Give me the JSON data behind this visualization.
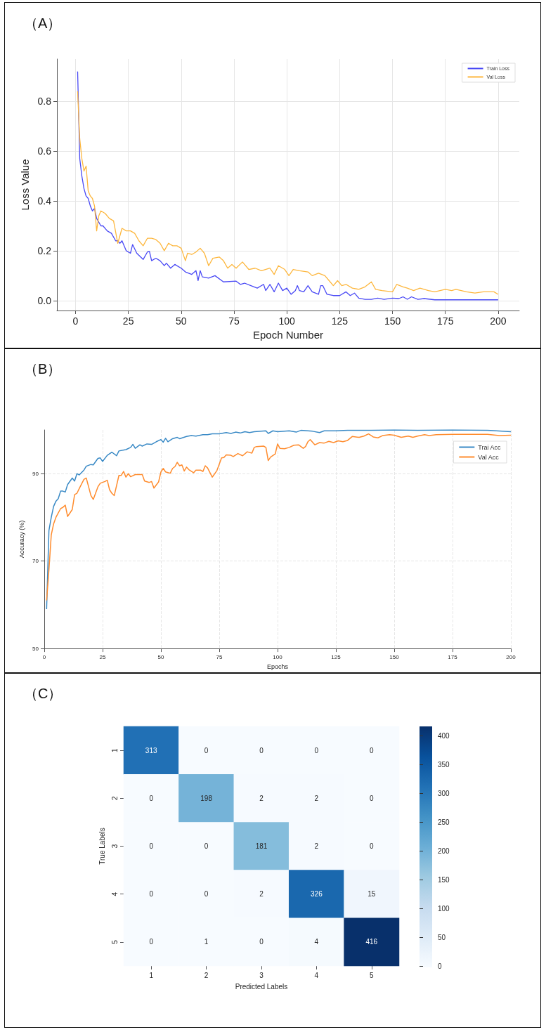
{
  "chart_data": [
    {
      "type": "line",
      "title": "（A）",
      "xlabel": "Epoch Number",
      "ylabel": "Loss Value",
      "xlim": [
        -8.8,
        210
      ],
      "xticks": [
        0,
        25,
        50,
        75,
        100,
        125,
        150,
        175,
        200
      ],
      "ylim": [
        -0.04,
        0.97
      ],
      "yticks": [
        {
          "value": 0,
          "label": "0.0"
        },
        0.2,
        0.4,
        0.6,
        0.8
      ],
      "grid": true,
      "legend": "top right",
      "series": [
        {
          "name": "Train Loss",
          "color": "#4a4af5",
          "x": [
            1,
            2,
            3,
            4,
            5,
            6,
            7,
            8,
            9,
            10,
            12,
            13,
            15,
            17,
            19,
            20,
            21,
            22,
            24,
            26,
            27,
            29,
            32,
            34,
            35,
            36,
            38,
            40,
            42,
            43,
            45,
            47,
            50,
            52,
            55,
            57,
            58,
            59,
            60,
            63,
            66,
            70,
            76,
            78,
            80,
            83,
            86,
            89,
            90,
            92,
            94,
            96,
            98,
            100,
            102,
            104,
            105,
            106,
            108,
            110,
            112,
            115,
            116,
            117,
            119,
            122,
            125,
            128,
            130,
            132,
            134,
            137,
            140,
            143,
            146,
            150,
            153,
            155,
            157,
            159,
            162,
            165,
            170,
            180,
            190,
            200
          ],
          "values": [
            0.92,
            0.57,
            0.5,
            0.45,
            0.42,
            0.41,
            0.38,
            0.36,
            0.37,
            0.33,
            0.3,
            0.3,
            0.28,
            0.27,
            0.24,
            0.24,
            0.23,
            0.24,
            0.2,
            0.19,
            0.225,
            0.19,
            0.165,
            0.195,
            0.197,
            0.16,
            0.17,
            0.16,
            0.14,
            0.15,
            0.13,
            0.145,
            0.13,
            0.115,
            0.105,
            0.12,
            0.08,
            0.12,
            0.095,
            0.09,
            0.1,
            0.075,
            0.078,
            0.065,
            0.07,
            0.06,
            0.05,
            0.065,
            0.04,
            0.065,
            0.035,
            0.07,
            0.04,
            0.05,
            0.025,
            0.04,
            0.06,
            0.04,
            0.035,
            0.06,
            0.035,
            0.025,
            0.06,
            0.06,
            0.025,
            0.02,
            0.02,
            0.035,
            0.02,
            0.03,
            0.01,
            0.005,
            0.005,
            0.01,
            0.005,
            0.01,
            0.008,
            0.015,
            0.005,
            0.015,
            0.005,
            0.008,
            0.003,
            0.003,
            0.003,
            0.003
          ]
        },
        {
          "name": "Val Loss",
          "color": "#fdb73e",
          "x": [
            1,
            2,
            3,
            4,
            5,
            6,
            7,
            8,
            9,
            10,
            11,
            12,
            14,
            16,
            18,
            20,
            22,
            24,
            26,
            28,
            30,
            32,
            34,
            36,
            38,
            40,
            42,
            44,
            46,
            48,
            50,
            52,
            53,
            55,
            57,
            59,
            61,
            63,
            65,
            68,
            70,
            72,
            74,
            76,
            79,
            82,
            85,
            88,
            92,
            94,
            96,
            99,
            101,
            103,
            106,
            110,
            112,
            115,
            118,
            120,
            122,
            124,
            126,
            128,
            131,
            134,
            137,
            140,
            142,
            145,
            150,
            152,
            155,
            157,
            160,
            163,
            167,
            170,
            175,
            178,
            180,
            185,
            189,
            193,
            198,
            200
          ],
          "values": [
            0.84,
            0.65,
            0.57,
            0.52,
            0.54,
            0.44,
            0.42,
            0.41,
            0.38,
            0.28,
            0.34,
            0.36,
            0.35,
            0.33,
            0.32,
            0.23,
            0.29,
            0.28,
            0.28,
            0.27,
            0.24,
            0.22,
            0.25,
            0.25,
            0.245,
            0.23,
            0.2,
            0.23,
            0.22,
            0.22,
            0.21,
            0.16,
            0.19,
            0.185,
            0.195,
            0.21,
            0.19,
            0.14,
            0.17,
            0.175,
            0.16,
            0.13,
            0.145,
            0.13,
            0.155,
            0.125,
            0.13,
            0.12,
            0.13,
            0.105,
            0.14,
            0.125,
            0.1,
            0.125,
            0.12,
            0.115,
            0.1,
            0.11,
            0.1,
            0.08,
            0.06,
            0.08,
            0.06,
            0.065,
            0.05,
            0.045,
            0.055,
            0.075,
            0.045,
            0.04,
            0.035,
            0.065,
            0.055,
            0.05,
            0.04,
            0.05,
            0.04,
            0.035,
            0.045,
            0.04,
            0.045,
            0.035,
            0.03,
            0.035,
            0.035,
            0.025
          ]
        }
      ]
    },
    {
      "type": "line",
      "title": "（B）",
      "xlabel": "Epochs",
      "ylabel": "Accuracy (%)",
      "xlim": [
        0,
        200
      ],
      "xticks": [
        0,
        25,
        50,
        75,
        100,
        125,
        150,
        175,
        200
      ],
      "ylim": [
        50,
        100
      ],
      "yticks": [
        50,
        70,
        90
      ],
      "grid": true,
      "legend": "top right",
      "series": [
        {
          "name": "Trai Acc",
          "color": "#3a8ac6",
          "x": [
            1,
            2,
            3,
            4,
            5,
            6,
            7,
            8,
            9,
            10,
            12,
            13,
            14,
            15,
            17,
            18,
            20,
            21,
            23,
            24,
            25,
            27,
            29,
            31,
            32,
            35,
            37,
            38,
            39,
            41,
            42,
            44,
            46,
            48,
            50,
            51,
            52,
            53,
            55,
            57,
            58,
            61,
            63,
            65,
            68,
            70,
            72,
            75,
            78,
            80,
            82,
            84,
            86,
            88,
            90,
            95,
            96,
            98,
            100,
            105,
            108,
            110,
            115,
            118,
            120,
            125,
            130,
            140,
            150,
            160,
            175,
            190,
            200
          ],
          "values": [
            59,
            77,
            80,
            82.5,
            83.7,
            84.3,
            86,
            86,
            85.8,
            87.5,
            89,
            88.3,
            90,
            89.7,
            90.8,
            91.7,
            92.1,
            92,
            93.5,
            93.6,
            92.8,
            94.2,
            94.9,
            94.1,
            95.2,
            95.5,
            96,
            96.7,
            95.8,
            96.6,
            96.3,
            96.8,
            96.7,
            97.3,
            97.8,
            97.2,
            98.1,
            97.3,
            98,
            98.3,
            98,
            98.5,
            98.7,
            98.6,
            98.9,
            98.9,
            99.1,
            99.1,
            99.4,
            99.2,
            99.5,
            99.3,
            99.6,
            99.4,
            99.6,
            99.8,
            99.2,
            99.8,
            99.6,
            99.8,
            99.5,
            99.9,
            99.7,
            99.4,
            99.8,
            99.8,
            99.9,
            99.9,
            100,
            99.9,
            100,
            99.9,
            99.6
          ]
        },
        {
          "name": "Val Acc",
          "color": "#ff8c2e",
          "x": [
            1,
            2,
            3,
            4,
            5,
            6,
            7,
            8,
            9,
            10,
            11,
            12,
            13,
            14,
            15,
            17,
            18,
            19,
            20,
            21,
            23,
            24,
            26,
            27,
            28,
            29,
            30,
            32,
            33,
            34,
            35,
            36,
            37,
            39,
            42,
            43,
            45,
            46,
            47,
            49,
            50,
            51,
            52,
            54,
            55,
            56,
            57,
            58,
            59,
            60,
            61,
            62,
            64,
            65,
            67,
            68,
            69,
            70,
            72,
            74,
            76,
            77,
            78,
            80,
            81,
            83,
            85,
            87,
            89,
            90,
            91,
            94,
            95,
            96,
            97,
            99,
            100,
            101,
            103,
            105,
            107,
            109,
            111,
            112,
            113,
            114,
            116,
            118,
            120,
            122,
            124,
            126,
            128,
            130,
            132,
            135,
            137,
            139,
            141,
            143,
            145,
            148,
            150,
            153,
            156,
            158,
            160,
            163,
            165,
            168,
            175,
            180,
            190,
            195,
            200
          ],
          "values": [
            61,
            68,
            76,
            78.5,
            80,
            81,
            82,
            82.3,
            82.8,
            80.2,
            81,
            81.8,
            85.2,
            85.5,
            86.6,
            88.7,
            89,
            87,
            85,
            84.1,
            87,
            87.8,
            88.2,
            88.5,
            86.3,
            85.5,
            85,
            89.6,
            89.6,
            90.5,
            89.2,
            90,
            89.3,
            89.8,
            89.8,
            88.3,
            88,
            88.2,
            86.7,
            88.1,
            90.4,
            91.2,
            90.4,
            90.1,
            91.2,
            91.6,
            92.6,
            91.8,
            92,
            90.6,
            91.5,
            90.9,
            90.2,
            90.8,
            90.8,
            90.5,
            91.8,
            91.3,
            89.2,
            90.7,
            93.6,
            93.7,
            94.3,
            94.2,
            93.9,
            94.6,
            94.1,
            95,
            94.7,
            96,
            96.2,
            96.3,
            96,
            93,
            93.8,
            94.5,
            96.8,
            95.8,
            95.7,
            96,
            96.5,
            96.6,
            95.8,
            96.2,
            97.3,
            97.8,
            96.6,
            97.1,
            97,
            97.4,
            97.1,
            97.5,
            97.3,
            97.6,
            98.5,
            98.3,
            98.6,
            99.1,
            98.4,
            98.2,
            98.7,
            98.9,
            98.8,
            98.3,
            98.6,
            98.3,
            98.6,
            98.9,
            98.7,
            98.9,
            99,
            99,
            99,
            98.7,
            98.8
          ]
        }
      ]
    },
    {
      "type": "heatmap",
      "title": "（C）",
      "xlabel": "Predicted Labels",
      "ylabel": "True Labels",
      "categories": [
        "1",
        "2",
        "3",
        "4",
        "5"
      ],
      "y_categories": [
        "1",
        "2",
        "3",
        "4",
        "5"
      ],
      "cells": [
        [
          313,
          0,
          0,
          0,
          0
        ],
        [
          0,
          198,
          2,
          2,
          0
        ],
        [
          0,
          0,
          181,
          2,
          0
        ],
        [
          0,
          0,
          2,
          326,
          15
        ],
        [
          0,
          1,
          0,
          4,
          416
        ]
      ],
      "clim": [
        0,
        416
      ],
      "cticks": [
        0,
        50,
        100,
        150,
        200,
        250,
        300,
        350,
        400
      ],
      "data_labels": true
    }
  ]
}
